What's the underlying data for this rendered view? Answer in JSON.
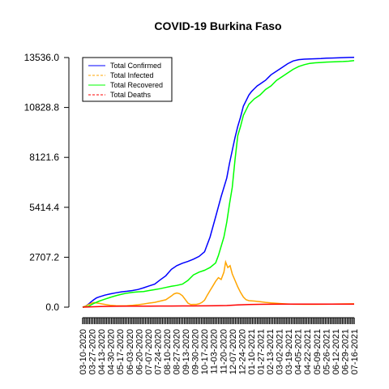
{
  "chart_data": {
    "type": "line",
    "title": "COVID-19 Burkina Faso",
    "xlabel": "",
    "ylabel": "",
    "ylim": [
      0,
      13536
    ],
    "y_ticks": [
      0,
      2707.2,
      5414.4,
      8121.6,
      10828.8,
      13536
    ],
    "y_tick_labels": [
      "0.0",
      "2707.2",
      "5414.4",
      "8121.6",
      "10828.8",
      "13536.0"
    ],
    "x_tick_labels": [
      "03-10-2020",
      "03-27-2020",
      "04-13-2020",
      "04-30-2020",
      "05-17-2020",
      "06-03-2020",
      "06-20-2020",
      "07-07-2020",
      "07-24-2020",
      "08-10-2020",
      "08-27-2020",
      "09-13-2020",
      "09-30-2020",
      "10-17-2020",
      "11-03-2020",
      "11-20-2020",
      "12-07-2020",
      "12-24-2020",
      "01-10-2021",
      "01-27-2021",
      "02-13-2021",
      "03-02-2021",
      "03-19-2021",
      "04-05-2021",
      "04-22-2021",
      "05-09-2021",
      "05-26-2021",
      "06-12-2021",
      "06-29-2021",
      "07-16-2021"
    ],
    "legend_position": "top-left",
    "series": [
      {
        "name": "Total Confirmed",
        "color": "#0000ff",
        "dash": "solid",
        "x": [
          0,
          5,
          10,
          15,
          20,
          25,
          30,
          40,
          50,
          60,
          70,
          80,
          90,
          100,
          110,
          120,
          130,
          140,
          150,
          160,
          170,
          180,
          190,
          200,
          210,
          220,
          230,
          240,
          250,
          260,
          265,
          270,
          275,
          280,
          285,
          290,
          295,
          300,
          305,
          310,
          315,
          320,
          325,
          330,
          335,
          340,
          350,
          360,
          370,
          380,
          390,
          400,
          410,
          420,
          430,
          440,
          450,
          460,
          470,
          480,
          490
        ],
        "y": [
          0,
          50,
          150,
          280,
          400,
          500,
          560,
          650,
          720,
          780,
          830,
          860,
          900,
          960,
          1050,
          1150,
          1250,
          1480,
          1700,
          2050,
          2250,
          2380,
          2480,
          2600,
          2750,
          3000,
          3800,
          4900,
          6000,
          7000,
          7800,
          8500,
          9200,
          9800,
          10300,
          10900,
          11200,
          11500,
          11700,
          11850,
          12000,
          12100,
          12200,
          12300,
          12450,
          12600,
          12800,
          13000,
          13200,
          13350,
          13420,
          13450,
          13460,
          13470,
          13480,
          13500,
          13510,
          13520,
          13530,
          13540,
          13550
        ]
      },
      {
        "name": "Total Infected",
        "color": "#ffa500",
        "dash": "dashed",
        "x": [
          0,
          5,
          10,
          15,
          20,
          30,
          40,
          50,
          60,
          70,
          80,
          90,
          100,
          110,
          120,
          130,
          140,
          150,
          160,
          165,
          170,
          175,
          180,
          185,
          190,
          195,
          200,
          205,
          210,
          215,
          220,
          225,
          230,
          235,
          240,
          245,
          250,
          255,
          258,
          262,
          266,
          270,
          275,
          280,
          285,
          290,
          295,
          300,
          310,
          320,
          330,
          340,
          350,
          360,
          370,
          380,
          400,
          420,
          440,
          460,
          490
        ],
        "y": [
          0,
          50,
          130,
          200,
          250,
          200,
          150,
          100,
          80,
          70,
          80,
          100,
          130,
          170,
          220,
          260,
          330,
          400,
          600,
          720,
          770,
          730,
          620,
          420,
          220,
          140,
          150,
          150,
          180,
          250,
          380,
          650,
          900,
          1150,
          1400,
          1600,
          1500,
          1900,
          2450,
          2150,
          2250,
          1800,
          1450,
          1100,
          800,
          550,
          400,
          350,
          330,
          300,
          260,
          230,
          210,
          190,
          170,
          160,
          155,
          155,
          160,
          170,
          180
        ]
      },
      {
        "name": "Total Recovered",
        "color": "#00ff00",
        "dash": "solid",
        "x": [
          0,
          10,
          20,
          30,
          40,
          50,
          60,
          70,
          80,
          90,
          100,
          110,
          120,
          130,
          140,
          150,
          160,
          170,
          180,
          190,
          200,
          210,
          220,
          230,
          240,
          245,
          250,
          255,
          260,
          265,
          270,
          275,
          280,
          285,
          290,
          300,
          310,
          320,
          330,
          340,
          350,
          360,
          370,
          380,
          390,
          400,
          410,
          420,
          430,
          440,
          450,
          460,
          470,
          480,
          490
        ],
        "y": [
          0,
          30,
          200,
          330,
          430,
          530,
          620,
          700,
          760,
          800,
          830,
          850,
          900,
          950,
          1000,
          1070,
          1130,
          1180,
          1250,
          1450,
          1750,
          1900,
          2000,
          2150,
          2400,
          2800,
          3300,
          3800,
          4600,
          5600,
          6500,
          8000,
          9300,
          9800,
          10400,
          11000,
          11300,
          11500,
          11800,
          12000,
          12300,
          12500,
          12700,
          12900,
          13050,
          13150,
          13220,
          13250,
          13270,
          13290,
          13300,
          13310,
          13320,
          13340,
          13370
        ]
      },
      {
        "name": "Total Deaths",
        "color": "#ff0000",
        "dash": "dashed",
        "x": [
          0,
          20,
          40,
          60,
          80,
          100,
          120,
          140,
          160,
          180,
          200,
          220,
          240,
          260,
          280,
          300,
          320,
          340,
          360,
          380,
          400,
          420,
          440,
          460,
          490
        ],
        "y": [
          0,
          20,
          40,
          50,
          53,
          55,
          58,
          60,
          62,
          64,
          67,
          70,
          75,
          90,
          120,
          140,
          155,
          160,
          162,
          163,
          164,
          164,
          165,
          165,
          166
        ]
      }
    ]
  }
}
